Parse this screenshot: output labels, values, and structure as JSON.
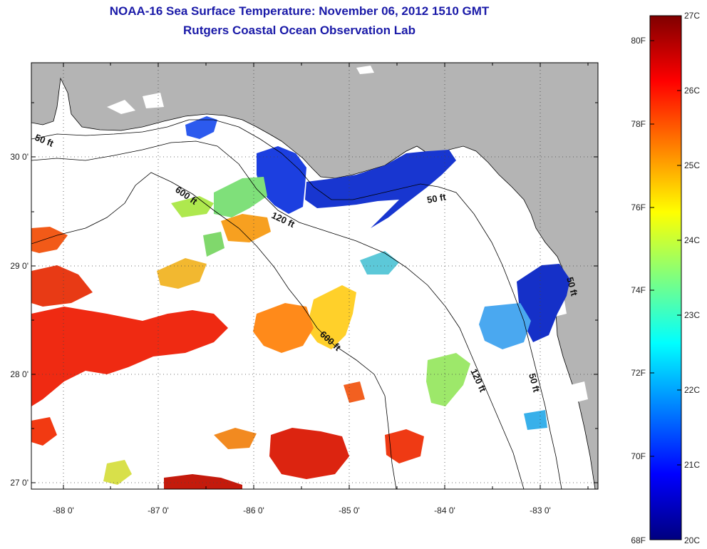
{
  "title": {
    "line1": "NOAA-16 Sea Surface Temperature:  November 06, 2012 1510 GMT",
    "line2": "Rutgers Coastal Ocean Observation Lab"
  },
  "axes": {
    "lat_ticks": [
      "30 0'",
      "29 0'",
      "28 0'",
      "27 0'"
    ],
    "lon_ticks": [
      "-88 0'",
      "-87 0'",
      "-86 0'",
      "-85 0'",
      "-84 0'",
      "-83 0'"
    ]
  },
  "contours": {
    "shallow": "50 ft",
    "mid": "120 ft",
    "deep": "600 ft"
  },
  "colorbar": {
    "f_labels": [
      "80F",
      "78F",
      "76F",
      "74F",
      "72F",
      "70F",
      "68F"
    ],
    "c_labels": [
      "27C",
      "26C",
      "25C",
      "24C",
      "23C",
      "22C",
      "21C",
      "20C"
    ]
  },
  "colors": {
    "land": "#b4b4b4",
    "water_nodata": "#ffffff",
    "title": "#1a1aa8"
  }
}
